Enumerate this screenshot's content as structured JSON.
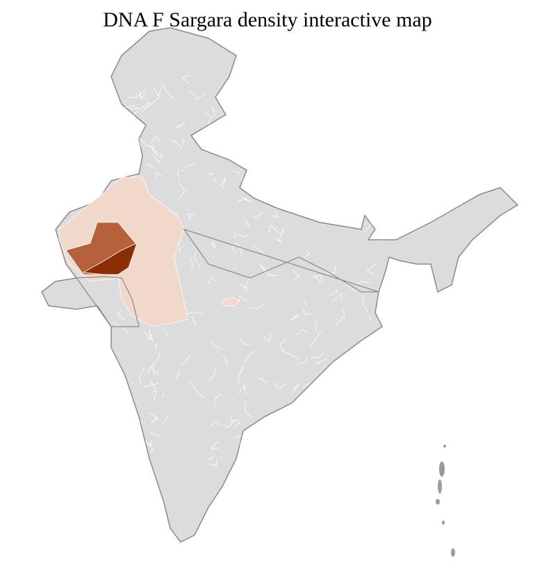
{
  "title": "DNA F Sargara density interactive map",
  "colors": {
    "no_data": "#dcdcdc",
    "state_border": "#8a8a8a",
    "district_border": "#ffffff",
    "density_low": "#f0d8ca",
    "density_medium": "#b5623c",
    "density_high": "#8b2e05"
  }
}
